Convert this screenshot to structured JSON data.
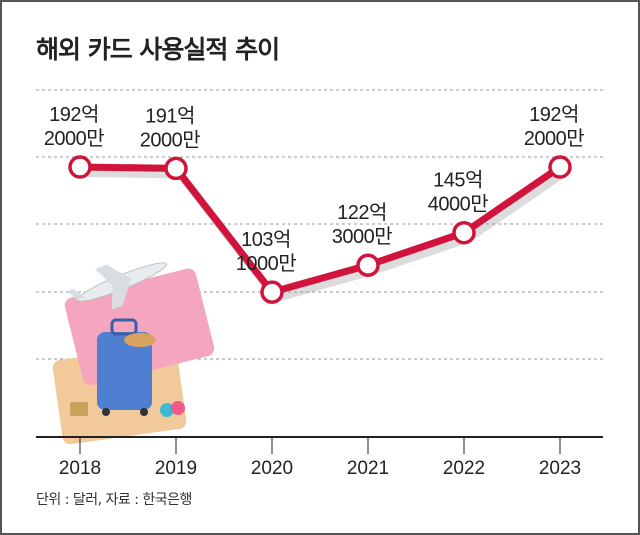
{
  "title": "해외 카드 사용실적 추이",
  "note": "단위 : 달러, 자료 : 한국은행",
  "chart_data": {
    "type": "line",
    "title": "해외 카드 사용실적 추이",
    "categories": [
      "2018",
      "2019",
      "2020",
      "2021",
      "2022",
      "2023"
    ],
    "values": [
      192.2,
      191.2,
      103.1,
      122.3,
      145.4,
      192.2
    ],
    "value_unit": "억 달러",
    "data_labels": [
      [
        "192억",
        "2000만"
      ],
      [
        "191억",
        "2000만"
      ],
      [
        "103억",
        "1000만"
      ],
      [
        "122억",
        "3000만"
      ],
      [
        "145억",
        "4000만"
      ],
      [
        "192억",
        "2000만"
      ]
    ],
    "ylim": [
      0,
      250
    ],
    "grid": true,
    "legend": "none",
    "line_color": "#d0143c",
    "marker_fill": "#ffffff"
  }
}
